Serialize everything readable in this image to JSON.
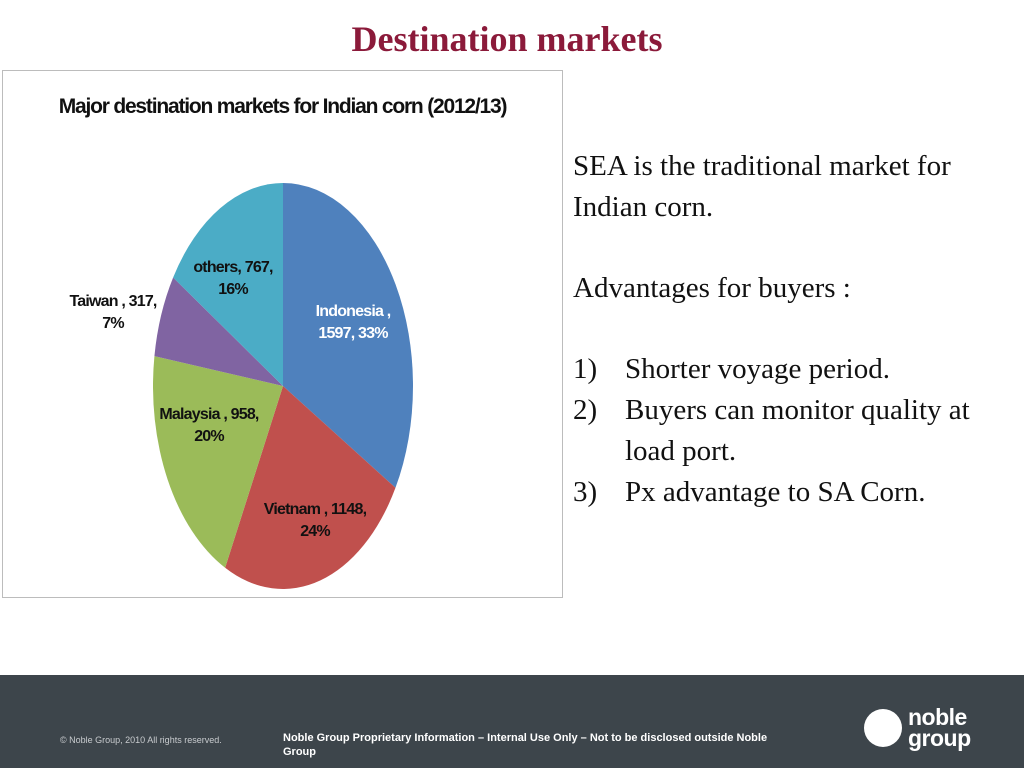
{
  "title": "Destination markets",
  "chart_data": {
    "type": "pie",
    "title": "Major destination markets for Indian corn (2012/13)",
    "values": [
      1597,
      1148,
      958,
      317,
      767
    ],
    "value_labels": [
      "Indonesia , 1597, 33%",
      "Vietnam , 1148, 24%",
      "Malaysia , 958, 20%",
      "Taiwan , 317, 7%",
      "others, 767, 16%"
    ],
    "colors": [
      "#4f81bd",
      "#c0504d",
      "#9bbb59",
      "#8064a2",
      "#4bacc6"
    ],
    "label_colors": [
      "#ffffff",
      "#111111",
      "#111111",
      "#111111",
      "#111111"
    ]
  },
  "text": {
    "intro": "SEA is the traditional market for Indian corn.",
    "subheading": "Advantages for buyers :",
    "points": [
      {
        "number": "1)",
        "text": "Shorter voyage period."
      },
      {
        "number": "2)",
        "text": "Buyers can monitor quality at load port."
      },
      {
        "number": "3)",
        "text": "Px advantage to SA Corn."
      }
    ]
  },
  "footer": {
    "copyright": "© Noble Group, 2010 All rights reserved.",
    "notice": "Noble Group Proprietary Information – Internal Use Only – Not to be disclosed outside Noble Group",
    "logo_top": "noble",
    "logo_bottom": "group"
  }
}
